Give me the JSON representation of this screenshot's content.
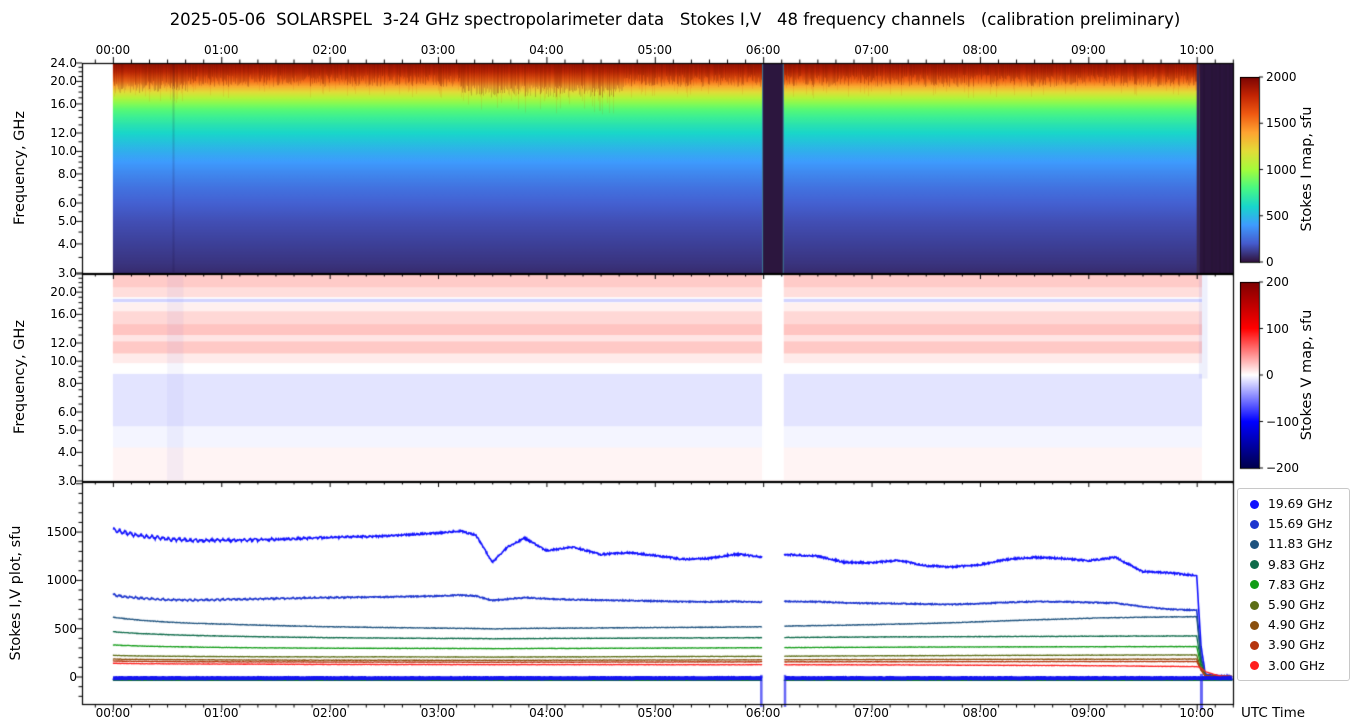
{
  "title": "2025-05-06  SOLARSPEL  3-24 GHz spectropolarimeter data   Stokes I,V   48 frequency channels   (calibration preliminary)",
  "x_axis": {
    "title": "UTC Time",
    "tick_labels": [
      "00:00",
      "01:00",
      "02:00",
      "03:00",
      "04:00",
      "05:00",
      "06:00",
      "07:00",
      "08:00",
      "09:00",
      "10:00"
    ],
    "minor_tick_minutes": 10,
    "range_hours": [
      -0.285,
      10.335
    ]
  },
  "panels": {
    "stokes_i_map": {
      "ylabel": "Frequency, GHz",
      "ytick_values": [
        24,
        20,
        16,
        12,
        10,
        8,
        6,
        5,
        4,
        3
      ],
      "ytick_labels": [
        "24.0",
        "20.0",
        "16.0",
        "12.0",
        "10.0",
        "8.0",
        "6.0",
        "5.0",
        "4.0",
        "3.0"
      ],
      "scale": "log"
    },
    "stokes_v_map": {
      "ylabel": "Frequency, GHz",
      "ytick_values": [
        20,
        16,
        12,
        10,
        8,
        6,
        5,
        4,
        3
      ],
      "ytick_labels": [
        "20.0",
        "16.0",
        "12.0",
        "10.0",
        "8.0",
        "6.0",
        "5.0",
        "4.0",
        "3.0"
      ],
      "scale": "log"
    },
    "stokes_iv_plot": {
      "ylabel": "Stokes I,V plot, sfu",
      "ytick_values": [
        0,
        500,
        1000,
        1500
      ],
      "ytick_labels": [
        "0",
        "500",
        "1000",
        "1500"
      ],
      "ylim": [
        -280,
        2018
      ]
    }
  },
  "colorbars": {
    "stokes_i": {
      "label": "Stokes I map, sfu",
      "tick_values": [
        0,
        500,
        1000,
        1500,
        2000
      ],
      "tick_labels": [
        "0",
        "500",
        "1000",
        "1500",
        "2000"
      ],
      "range": [
        0,
        2000
      ],
      "colormap": "turbo",
      "stops": [
        "#30123b",
        "#455bcd",
        "#3e9bfe",
        "#18d6cb",
        "#48f882",
        "#a4fc3b",
        "#e2dc38",
        "#fea331",
        "#ef5911",
        "#c22403",
        "#7a0403"
      ]
    },
    "stokes_v": {
      "label": "Stokes V map, sfu",
      "tick_values": [
        -200,
        -100,
        0,
        100,
        200
      ],
      "tick_labels": [
        "−200",
        "−100",
        "0",
        "100",
        "200"
      ],
      "range": [
        -200,
        200
      ],
      "colormap": "seismic",
      "stops": [
        "#00004c",
        "#0000ff",
        "#ffffff",
        "#ff0000",
        "#7f0000"
      ]
    }
  },
  "legend": [
    {
      "label": "19.69 GHz",
      "color": "#1212ff"
    },
    {
      "label": "15.69 GHz",
      "color": "#1e36cf"
    },
    {
      "label": "11.83 GHz",
      "color": "#1e527e"
    },
    {
      "label": "9.83 GHz",
      "color": "#0e6b4a"
    },
    {
      "label": "7.83 GHz",
      "color": "#119c16"
    },
    {
      "label": "5.90 GHz",
      "color": "#5c6e16"
    },
    {
      "label": "4.90 GHz",
      "color": "#8a500f"
    },
    {
      "label": "3.90 GHz",
      "color": "#b5350e"
    },
    {
      "label": "3.00 GHz",
      "color": "#ff1f1f"
    }
  ],
  "events": [
    {
      "label": "data gap (all panels blank/dark)",
      "start_hour": 5.99,
      "end_hour": 6.19
    },
    {
      "label": "end of observation, signals drop to zero",
      "start_hour": 10.0,
      "end_hour": 10.335
    }
  ],
  "chart_data": [
    {
      "type": "heatmap",
      "name": "stokes-i-dynamic-spectrum",
      "x_hours": [
        0,
        10.335
      ],
      "freq_range_ghz": [
        3,
        24
      ],
      "value_label": "Stokes I, sfu",
      "freq_profile": {
        "freq_ghz": [
          24,
          23,
          22,
          21,
          20,
          19,
          18,
          17,
          16,
          15,
          14,
          13,
          12,
          11,
          10,
          9,
          8,
          7,
          6,
          5,
          4,
          3.3,
          3
        ],
        "stokes_i_sfu": [
          1960,
          1900,
          1820,
          1700,
          1575,
          1405,
          1230,
          1080,
          950,
          845,
          765,
          690,
          620,
          550,
          480,
          410,
          345,
          283,
          225,
          172,
          130,
          95,
          72
        ]
      },
      "notes": "Smooth vertical gradient, nearly constant in time; blotchy dark-red texture above ~20 GHz, brighter 03:20–04:40; dark (zero) columns 05:59–06:11 and after 10:01"
    },
    {
      "type": "heatmap",
      "name": "stokes-v-dynamic-spectrum",
      "x_hours": [
        0,
        10.05
      ],
      "freq_range_ghz": [
        3,
        24
      ],
      "value_label": "Stokes V, sfu",
      "v_bands": [
        {
          "f_hi": 23.8,
          "f_lo": 21.0,
          "v": 40
        },
        {
          "f_hi": 21.0,
          "f_lo": 19.0,
          "v": 25
        },
        {
          "f_hi": 18.7,
          "f_lo": 18.1,
          "v": -35
        },
        {
          "f_hi": 18.0,
          "f_lo": 16.5,
          "v": 12
        },
        {
          "f_hi": 16.5,
          "f_lo": 14.5,
          "v": 30
        },
        {
          "f_hi": 14.5,
          "f_lo": 13.0,
          "v": 45
        },
        {
          "f_hi": 13.0,
          "f_lo": 12.2,
          "v": 20
        },
        {
          "f_hi": 12.2,
          "f_lo": 10.8,
          "v": 42
        },
        {
          "f_hi": 10.8,
          "f_lo": 9.8,
          "v": 15
        },
        {
          "f_hi": 9.8,
          "f_lo": 8.8,
          "v": 0
        },
        {
          "f_hi": 8.8,
          "f_lo": 5.2,
          "v": -22
        },
        {
          "f_hi": 5.2,
          "f_lo": 4.2,
          "v": -8
        },
        {
          "f_hi": 4.2,
          "f_lo": 3.0,
          "v": 8
        }
      ],
      "notes": "Near-white map: faint red horizontal bands 11–24 GHz, faint blue 5–9 GHz; white gap 05:59–06:11; pale blue edge then white after 10:01"
    },
    {
      "type": "line",
      "name": "stokes-iv-time-series",
      "x_label": "UTC Time",
      "y_label": "Stokes I,V plot, sfu",
      "t_hours": [
        0,
        0.1,
        0.25,
        0.5,
        0.75,
        1,
        1.25,
        1.5,
        2,
        2.5,
        3,
        3.2,
        3.35,
        3.5,
        3.65,
        3.8,
        4,
        4.25,
        4.5,
        4.75,
        5,
        5.25,
        5.5,
        5.75,
        5.99,
        6.19,
        6.5,
        6.75,
        7,
        7.25,
        7.5,
        7.75,
        8,
        8.25,
        8.5,
        8.75,
        9,
        9.25,
        9.5,
        9.75,
        10,
        10.04,
        10.08,
        10.2,
        10.33
      ],
      "series": [
        {
          "label": "19.69 GHz",
          "color": "#1212ff",
          "values": [
            1530,
            1495,
            1462,
            1428,
            1412,
            1415,
            1418,
            1425,
            1445,
            1458,
            1490,
            1512,
            1468,
            1188,
            1352,
            1438,
            1308,
            1345,
            1268,
            1288,
            1258,
            1218,
            1228,
            1272,
            1242,
            1268,
            1252,
            1188,
            1182,
            1208,
            1152,
            1138,
            1162,
            1218,
            1238,
            1228,
            1202,
            1238,
            1092,
            1078,
            1048,
            320,
            25,
            10,
            8
          ]
        },
        {
          "label": "15.69 GHz",
          "color": "#1e36cf",
          "values": [
            850,
            832,
            815,
            800,
            796,
            800,
            806,
            812,
            822,
            828,
            838,
            848,
            838,
            792,
            806,
            822,
            810,
            800,
            795,
            792,
            786,
            780,
            778,
            782,
            775,
            782,
            778,
            768,
            762,
            760,
            755,
            752,
            760,
            772,
            780,
            778,
            772,
            765,
            728,
            700,
            692,
            210,
            20,
            8,
            6
          ]
        },
        {
          "label": "11.83 GHz",
          "color": "#1e527e",
          "values": [
            620,
            605,
            588,
            568,
            556,
            548,
            540,
            532,
            520,
            512,
            506,
            504,
            502,
            498,
            500,
            503,
            505,
            506,
            508,
            510,
            512,
            513,
            515,
            517,
            520,
            526,
            532,
            536,
            542,
            548,
            554,
            562,
            572,
            582,
            592,
            600,
            608,
            614,
            618,
            622,
            624,
            180,
            18,
            7,
            5
          ]
        },
        {
          "label": "9.83 GHz",
          "color": "#0e6b4a",
          "values": [
            468,
            460,
            450,
            438,
            430,
            424,
            419,
            414,
            407,
            403,
            400,
            399,
            398,
            396,
            397,
            398,
            399,
            400,
            401,
            402,
            403,
            404,
            405,
            406,
            407,
            409,
            411,
            413,
            414,
            415,
            416,
            417,
            418,
            419,
            420,
            421,
            422,
            423,
            424,
            424,
            425,
            140,
            15,
            6,
            4
          ]
        },
        {
          "label": "7.83 GHz",
          "color": "#119c16",
          "values": [
            332,
            327,
            321,
            314,
            310,
            306,
            303,
            301,
            298,
            297,
            296,
            295,
            295,
            294,
            294,
            295,
            296,
            296,
            297,
            298,
            299,
            300,
            301,
            302,
            303,
            304,
            306,
            307,
            308,
            309,
            310,
            311,
            311,
            312,
            312,
            313,
            313,
            314,
            314,
            315,
            315,
            110,
            12,
            5,
            4
          ]
        },
        {
          "label": "5.90 GHz",
          "color": "#5c6e16",
          "values": [
            224,
            221,
            218,
            215,
            213,
            211,
            210,
            209,
            208,
            208,
            207,
            207,
            207,
            206,
            207,
            207,
            208,
            208,
            209,
            210,
            211,
            212,
            213,
            213,
            214,
            215,
            217,
            218,
            219,
            220,
            221,
            222,
            223,
            224,
            225,
            225,
            226,
            227,
            227,
            228,
            228,
            80,
            10,
            4,
            3
          ]
        },
        {
          "label": "4.90 GHz",
          "color": "#8a500f",
          "values": [
            186,
            184,
            182,
            180,
            178,
            177,
            176,
            175,
            174,
            174,
            173,
            173,
            173,
            173,
            173,
            173,
            174,
            174,
            175,
            175,
            176,
            176,
            177,
            177,
            178,
            178,
            179,
            180,
            180,
            181,
            181,
            182,
            182,
            183,
            183,
            184,
            184,
            184,
            185,
            185,
            185,
            70,
            9,
            4,
            3
          ]
        },
        {
          "label": "3.90 GHz",
          "color": "#b5350e",
          "values": [
            166,
            164,
            162,
            160,
            158,
            157,
            156,
            156,
            155,
            154,
            154,
            154,
            153,
            153,
            153,
            154,
            154,
            154,
            155,
            155,
            155,
            156,
            156,
            156,
            157,
            157,
            157,
            158,
            158,
            158,
            158,
            159,
            159,
            159,
            159,
            160,
            160,
            160,
            160,
            160,
            160,
            75,
            15,
            5,
            4
          ]
        },
        {
          "label": "3.00 GHz",
          "color": "#ff1f1f",
          "values": [
            142,
            140,
            138,
            136,
            135,
            134,
            133,
            132,
            130,
            129,
            129,
            128,
            128,
            128,
            128,
            128,
            128,
            128,
            128,
            128,
            128,
            127,
            127,
            127,
            127,
            127,
            126,
            126,
            125,
            125,
            124,
            123,
            122,
            121,
            120,
            119,
            117,
            115,
            112,
            110,
            108,
            95,
            55,
            14,
            5
          ]
        }
      ],
      "v_baseline": {
        "label": "Stokes V all channels (flat near zero)",
        "value": -12,
        "color": "#1414f0",
        "under_value": -34,
        "under_color": "#0b7a1e"
      },
      "notes": "Sawtooth modulation on the two brightest channels before ~02:40; blank gap 05:59–06:11; all Stokes I curves drop to zero just after 10:00 (3.00 GHz decays slowest)"
    }
  ]
}
